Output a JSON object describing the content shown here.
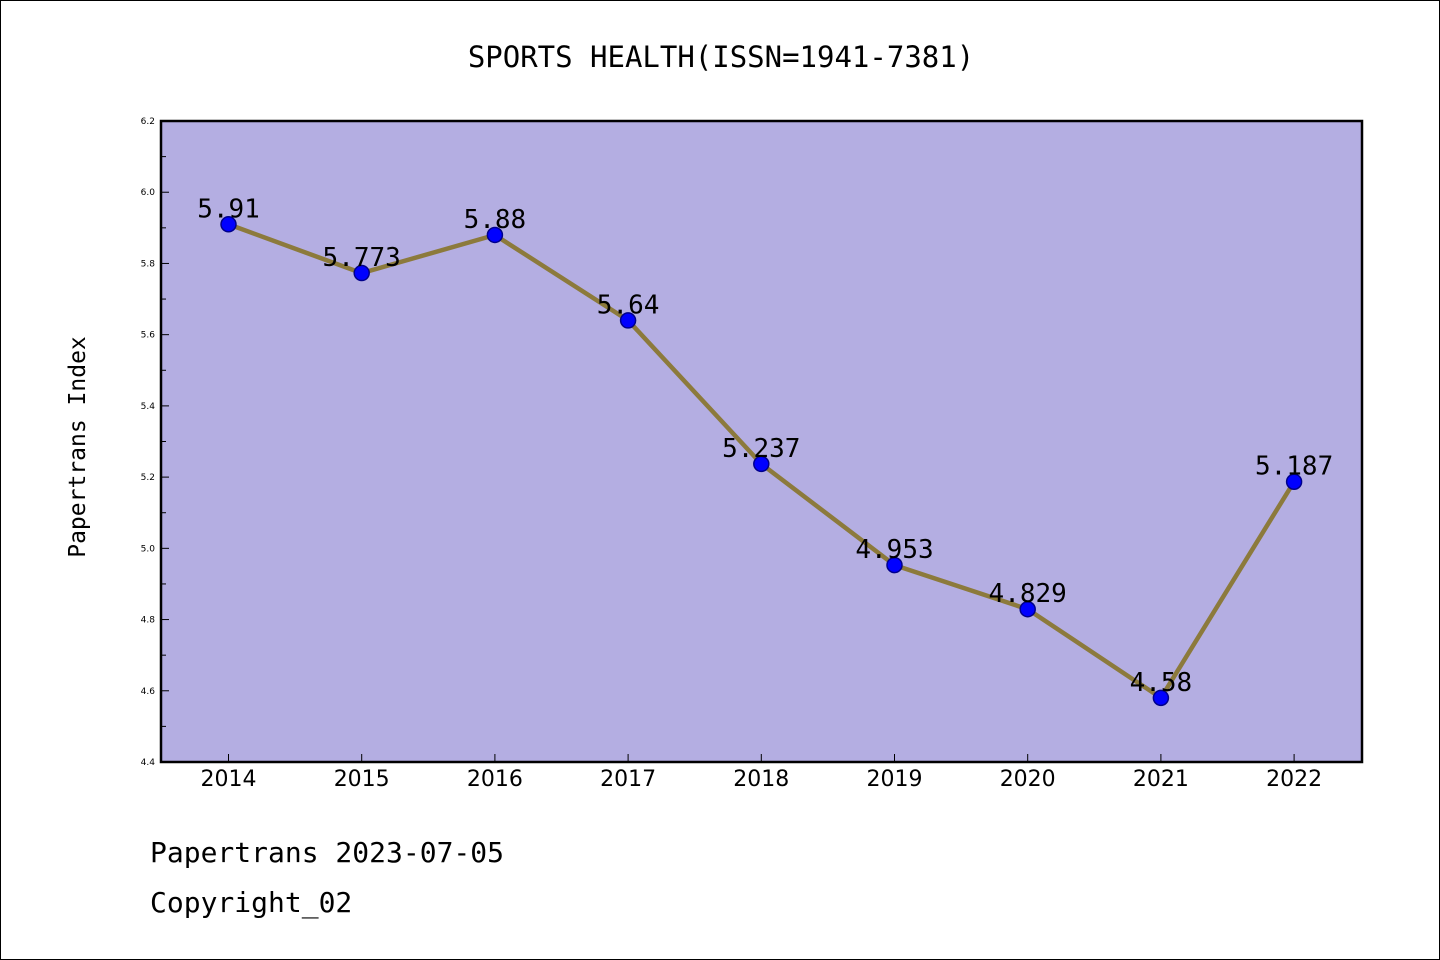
{
  "chart_data": {
    "type": "line",
    "title": "SPORTS HEALTH(ISSN=1941-7381)",
    "ylabel": "Papertrans Index",
    "xlabel": "",
    "categories": [
      "2014",
      "2015",
      "2016",
      "2017",
      "2018",
      "2019",
      "2020",
      "2021",
      "2022"
    ],
    "values": [
      5.91,
      5.773,
      5.88,
      5.64,
      5.237,
      4.953,
      4.829,
      4.58,
      5.187
    ],
    "value_labels": [
      "5.91",
      "5.773",
      "5.88",
      "5.64",
      "5.237",
      "4.953",
      "4.829",
      "4.58",
      "5.187"
    ],
    "ylim": [
      4.4,
      6.2
    ],
    "yticks": [
      "4.4",
      "4.6",
      "4.8",
      "5.0",
      "5.2",
      "5.4",
      "5.6",
      "5.8",
      "6.0",
      "6.2"
    ],
    "grid": false,
    "legend": "none",
    "colors": {
      "plot_background": "#b4aee2",
      "line": "#8c7a3c",
      "marker_fill": "#0000ff",
      "marker_edge": "#00008b"
    }
  },
  "footer": {
    "line1": "Papertrans 2023-07-05",
    "line2": "Copyright_02"
  }
}
